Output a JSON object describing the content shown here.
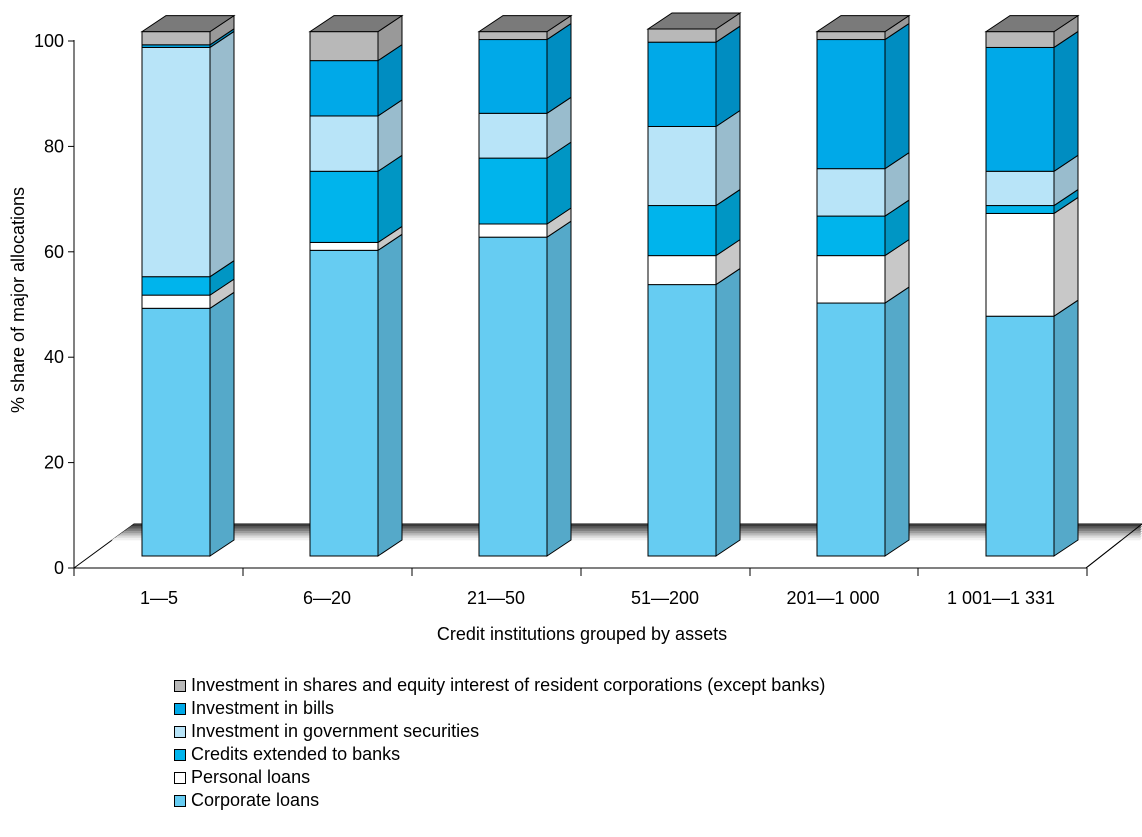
{
  "chart_data": {
    "type": "bar",
    "stacked": true,
    "three_d": true,
    "title": "",
    "xlabel": "Credit institutions grouped by assets",
    "ylabel": "% share of major allocations",
    "ylim": [
      0,
      100
    ],
    "yticks": [
      "0",
      "20",
      "40",
      "60",
      "80",
      "100"
    ],
    "categories": [
      "1—5",
      "6—20",
      "21—50",
      "51—200",
      "201—1 000",
      "1 001—1 331"
    ],
    "series": [
      {
        "name": "Corporate loans",
        "color": "#66ccf2",
        "side": "#55a9c9",
        "values": [
          47,
          58,
          60.5,
          51.5,
          48,
          45.5
        ]
      },
      {
        "name": "Personal loans",
        "color": "#ffffff",
        "side": "#c8c8c8",
        "values": [
          2.5,
          1.5,
          2.5,
          5.5,
          9,
          19.5
        ]
      },
      {
        "name": "Credits  extended to banks",
        "color": "#00b4ec",
        "side": "#0096c4",
        "values": [
          3.5,
          13.5,
          12.5,
          9.5,
          7.5,
          1.5
        ]
      },
      {
        "name": "Investment in government securities",
        "color": "#b8e4f8",
        "side": "#99bccd",
        "values": [
          43.5,
          10.5,
          8.5,
          15,
          9,
          6.5
        ]
      },
      {
        "name": "Investment in bills",
        "color": "#00a9e8",
        "side": "#008dc1",
        "values": [
          0.5,
          10.5,
          14,
          16,
          24.5,
          23.5
        ]
      },
      {
        "name": "Investment in shares and equity interest of resident corporations (except banks)",
        "color": "#b8b8b8",
        "side": "#999999",
        "values": [
          2.5,
          5.5,
          1.5,
          2.5,
          1.5,
          3
        ]
      }
    ],
    "legend_position": "bottom",
    "grid": false
  }
}
